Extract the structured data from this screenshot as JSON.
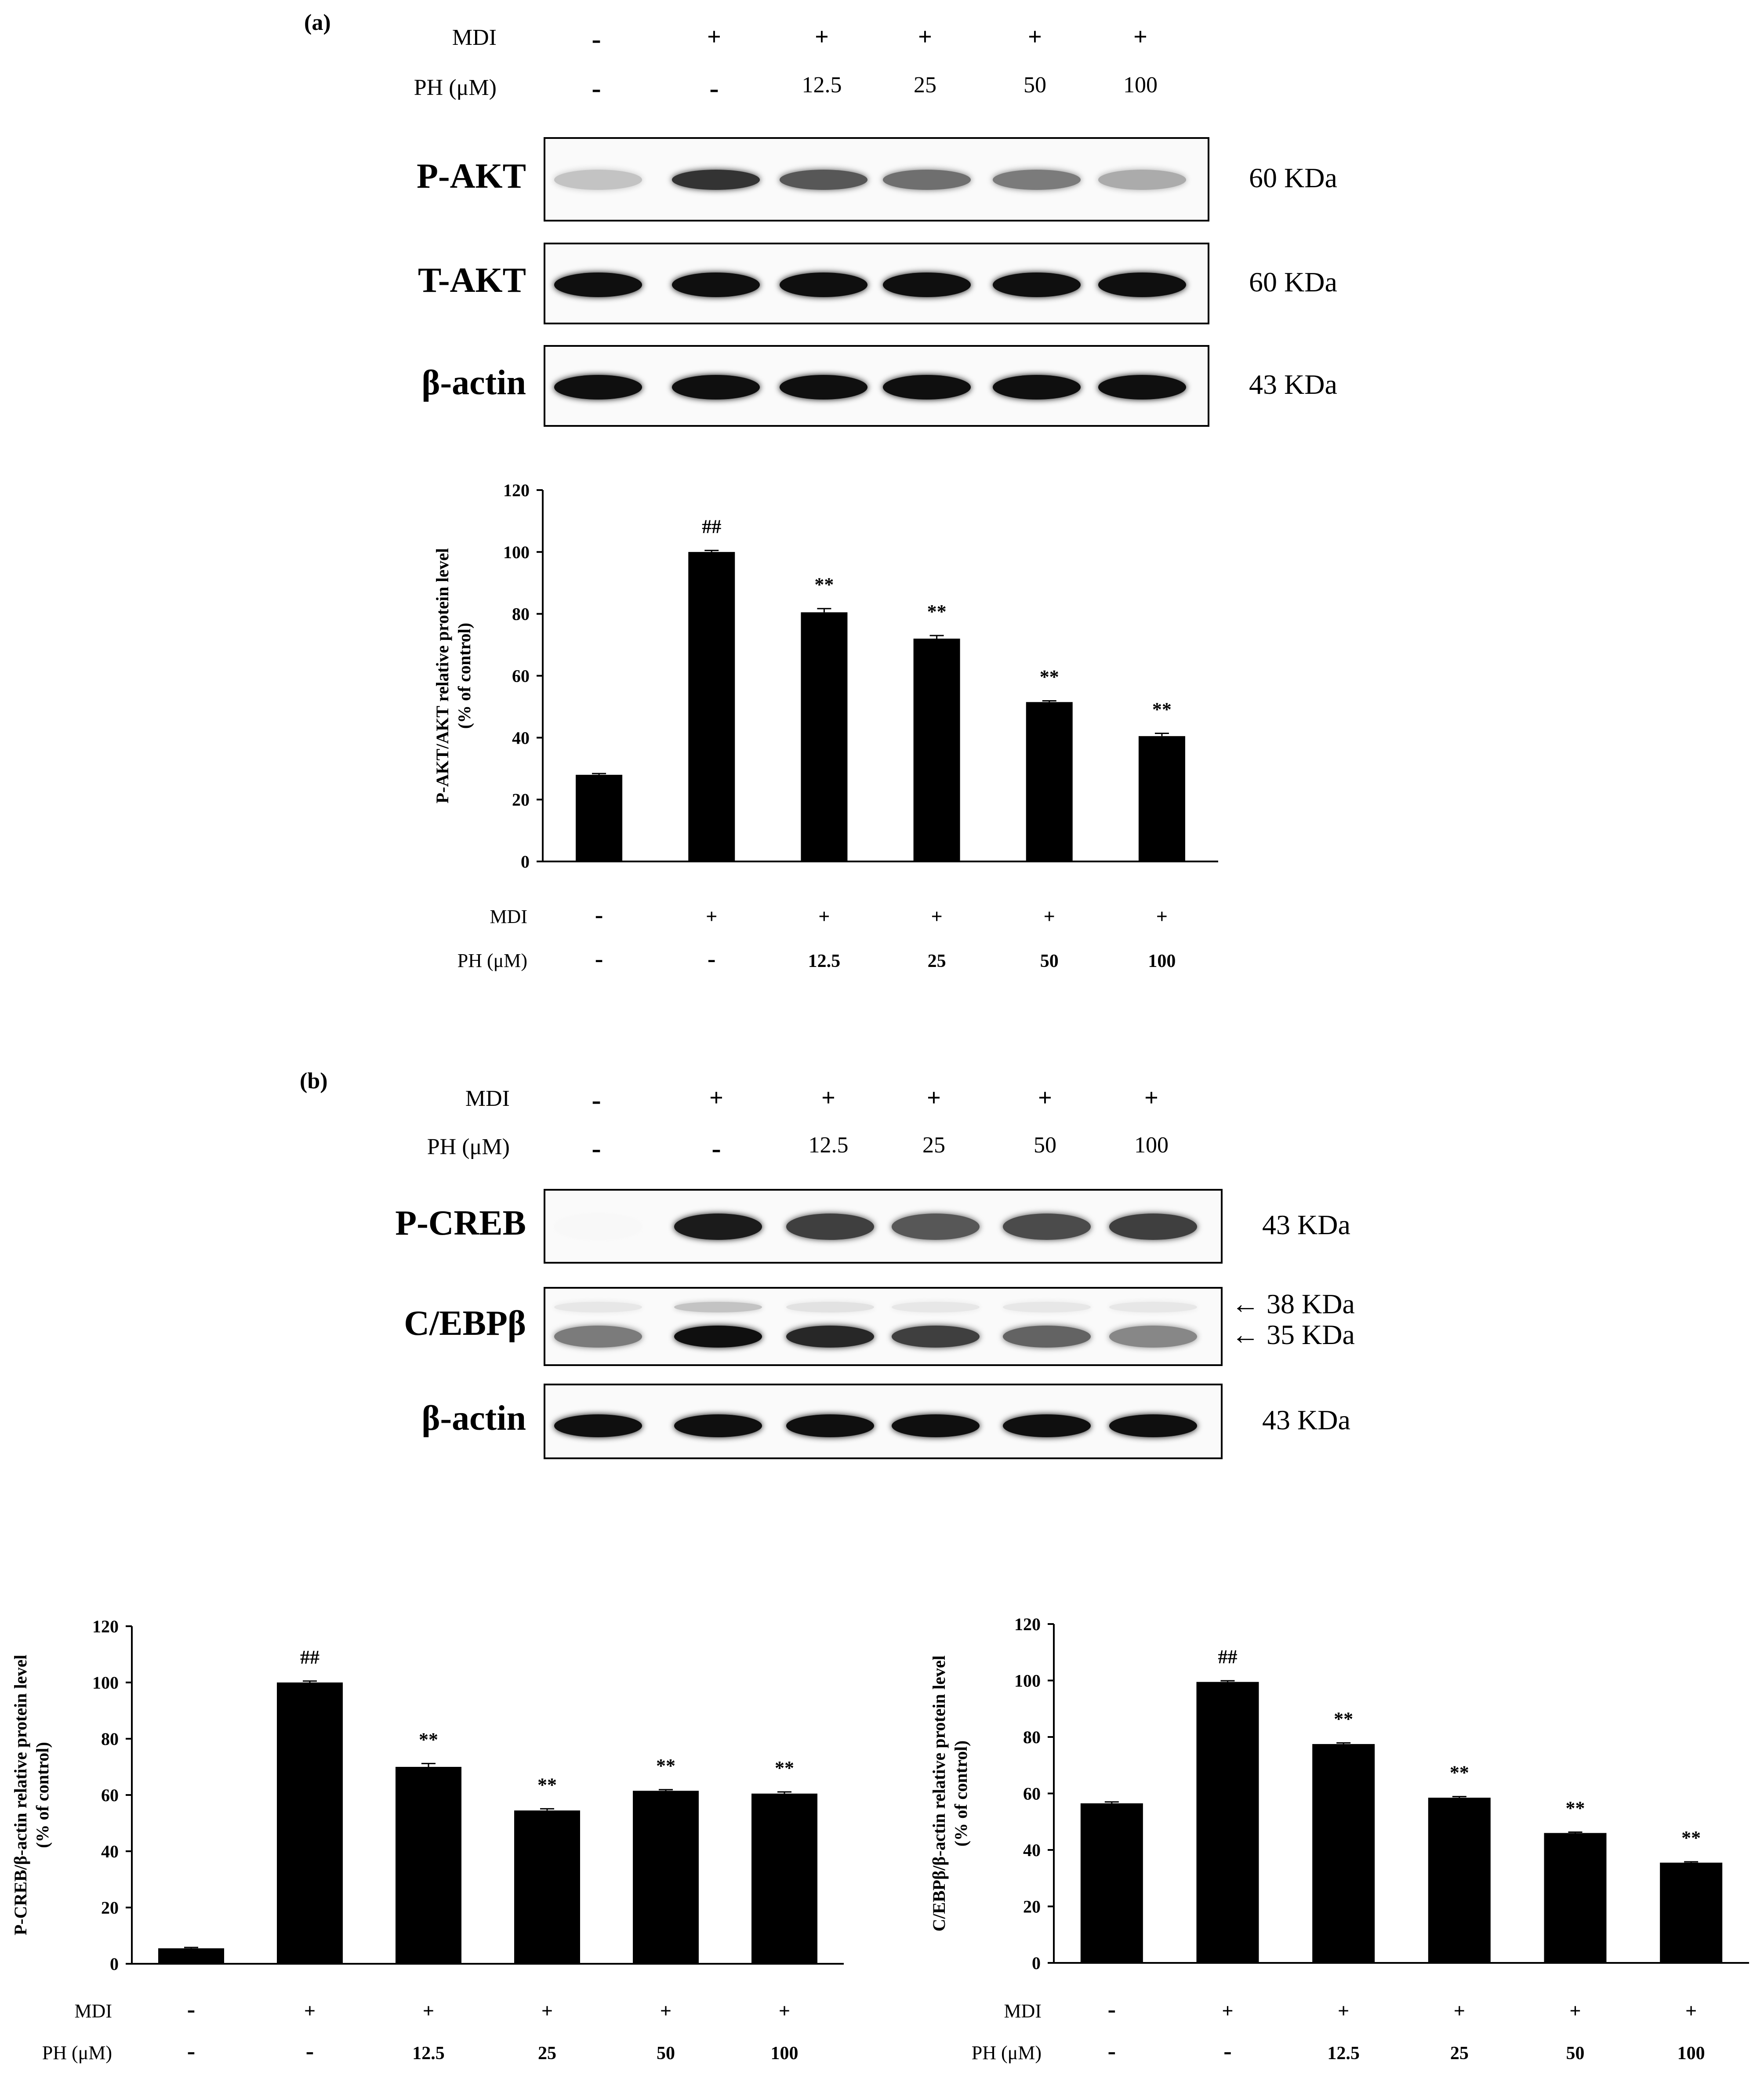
{
  "panels": {
    "a": {
      "label": "(a)",
      "header": {
        "mdi_label": "MDI",
        "ph_label": "PH (μM)",
        "mdi": [
          "-",
          "+",
          "+",
          "+",
          "+",
          "+"
        ],
        "ph": [
          "-",
          "-",
          "12.5",
          "25",
          "50",
          "100"
        ]
      },
      "blots": [
        {
          "protein": "P-AKT",
          "kda": "60 KDa",
          "intensity": [
            0.25,
            0.85,
            0.7,
            0.6,
            0.55,
            0.35
          ]
        },
        {
          "protein": "T-AKT",
          "kda": "60 KDa",
          "intensity": [
            1,
            1,
            1,
            1,
            1,
            1
          ]
        },
        {
          "protein": "β-actin",
          "kda": "43 KDa",
          "intensity": [
            1,
            1,
            1,
            1,
            1,
            1
          ]
        }
      ]
    },
    "b": {
      "label": "(b)",
      "header": {
        "mdi_label": "MDI",
        "ph_label": "PH (μM)",
        "mdi": [
          "-",
          "+",
          "+",
          "+",
          "+",
          "+"
        ],
        "ph": [
          "-",
          "-",
          "12.5",
          "25",
          "50",
          "100"
        ]
      },
      "blots": [
        {
          "protein": "P-CREB",
          "kda": "43 KDa",
          "intensity": [
            0.03,
            0.95,
            0.8,
            0.7,
            0.75,
            0.8
          ]
        },
        {
          "protein": "C/EBPβ",
          "kda_upper": "38 KDa",
          "kda_lower": "35 KDa",
          "upper_intensity": [
            0.1,
            0.25,
            0.12,
            0.1,
            0.1,
            0.1
          ],
          "intensity": [
            0.55,
            1,
            0.9,
            0.8,
            0.65,
            0.5
          ]
        },
        {
          "protein": "β-actin",
          "kda": "43 KDa",
          "intensity": [
            1,
            1,
            1,
            1,
            1,
            1
          ]
        }
      ]
    }
  },
  "chart_data": [
    {
      "type": "bar",
      "ylabel_line1": "P-AKT/AKT relative protein level",
      "ylabel_line2": "(% of control)",
      "ylim": [
        0,
        120
      ],
      "yticks": [
        0,
        20,
        40,
        60,
        80,
        100,
        120
      ],
      "values": [
        28,
        100,
        80.5,
        72,
        51.5,
        40.5
      ],
      "errors": [
        0.4,
        0.5,
        1.2,
        1.0,
        0.4,
        0.9
      ],
      "annotations": [
        "",
        "##",
        "**",
        "**",
        "**",
        "**"
      ],
      "mdi_label": "MDI",
      "ph_label": "PH (μM)",
      "mdi": [
        "-",
        "+",
        "+",
        "+",
        "+",
        "+"
      ],
      "ph": [
        "-",
        "-",
        "12.5",
        "25",
        "50",
        "100"
      ],
      "bar_color": "#000000"
    },
    {
      "type": "bar",
      "ylabel_line1": "P-CREB/β-actin relative protein level",
      "ylabel_line2": "(% of control)",
      "ylim": [
        0,
        120
      ],
      "yticks": [
        0,
        20,
        40,
        60,
        80,
        100,
        120
      ],
      "values": [
        5.5,
        100,
        70,
        54.5,
        61.5,
        60.5
      ],
      "errors": [
        0.3,
        0.5,
        1.2,
        0.6,
        0.4,
        0.6
      ],
      "annotations": [
        "",
        "##",
        "**",
        "**",
        "**",
        "**"
      ],
      "mdi_label": "MDI",
      "ph_label": "PH (μM)",
      "mdi": [
        "-",
        "+",
        "+",
        "+",
        "+",
        "+"
      ],
      "ph": [
        "-",
        "-",
        "12.5",
        "25",
        "50",
        "100"
      ],
      "bar_color": "#000000"
    },
    {
      "type": "bar",
      "ylabel_line1": "C/EBPβ/β-actin relative protein level",
      "ylabel_line2": "(% of control)",
      "ylim": [
        0,
        120
      ],
      "yticks": [
        0,
        20,
        40,
        60,
        80,
        100,
        120
      ],
      "values": [
        56.5,
        99.5,
        77.5,
        58.5,
        46,
        35.5
      ],
      "errors": [
        0.5,
        0.4,
        0.4,
        0.4,
        0.3,
        0.3
      ],
      "annotations": [
        "",
        "##",
        "**",
        "**",
        "**",
        "**"
      ],
      "mdi_label": "MDI",
      "ph_label": "PH (μM)",
      "mdi": [
        "-",
        "+",
        "+",
        "+",
        "+",
        "+"
      ],
      "ph": [
        "-",
        "-",
        "12.5",
        "25",
        "50",
        "100"
      ],
      "bar_color": "#000000"
    }
  ]
}
